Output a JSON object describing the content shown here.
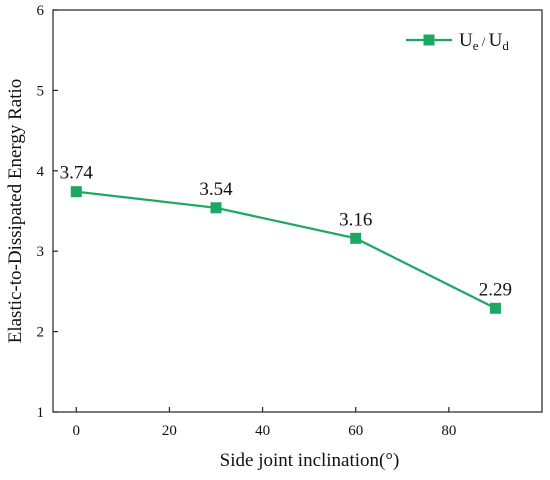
{
  "chart_data": {
    "type": "line",
    "title": "",
    "xlabel": "Side joint inclination(°)",
    "ylabel": "Elastic-to-Dissipated Energy Ratio",
    "xlim": [
      -5,
      100
    ],
    "ylim": [
      1,
      6
    ],
    "xticks": [
      0,
      20,
      40,
      60,
      80
    ],
    "yticks": [
      1,
      2,
      3,
      4,
      5,
      6
    ],
    "grid": false,
    "legend_position": "top-right",
    "series": [
      {
        "name_parts": {
          "main": "U",
          "sub1": "e",
          "sep": " / ",
          "main2": "U",
          "sub2": "d"
        },
        "color": "#1aa862",
        "marker": "square",
        "x": [
          0,
          30,
          60,
          90
        ],
        "values": [
          3.74,
          3.54,
          3.16,
          2.29
        ],
        "data_labels": [
          "3.74",
          "3.54",
          "3.16",
          "2.29"
        ]
      }
    ]
  }
}
